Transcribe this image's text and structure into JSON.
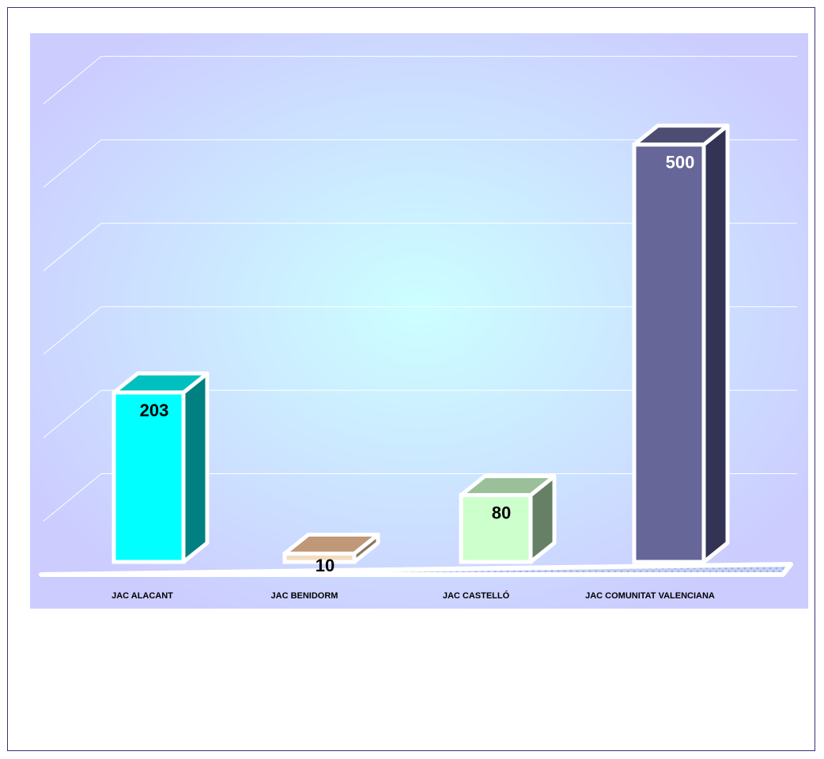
{
  "chart_data": {
    "type": "bar",
    "title": "",
    "xlabel": "",
    "ylabel": "",
    "categories": [
      "JAC ALACANT",
      "JAC BENIDORM",
      "JAC CASTELLÓ",
      "JAC COMUNITAT VALENCIANA"
    ],
    "values": [
      203,
      10,
      80,
      500
    ],
    "ylim": [
      0,
      600
    ],
    "grid": true,
    "three_d": true,
    "colors": {
      "fronts": [
        "#00ffff",
        "#f2dcc0",
        "#ccffcc",
        "#666699"
      ],
      "sides": [
        "#008080",
        "#8a7560",
        "#668066",
        "#333355"
      ],
      "tops": [
        "#00bfbf",
        "#c09878",
        "#99c099",
        "#4d4d73"
      ],
      "value_label_colors": [
        "#000000",
        "#000000",
        "#000000",
        "#ffffff"
      ],
      "plot_bg_center": "#ccffff",
      "plot_bg_edge": "#ccccff",
      "floor": "#b8c8ee",
      "frame": "#3a2f7a"
    }
  }
}
